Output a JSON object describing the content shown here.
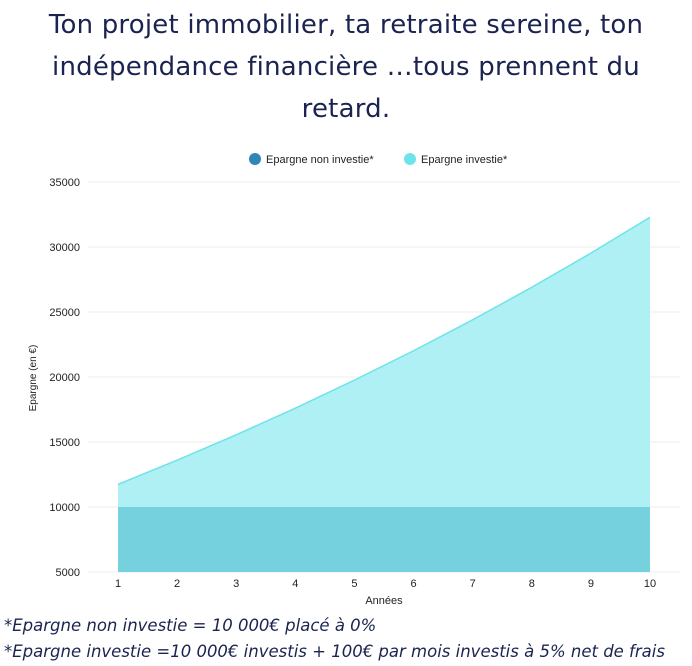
{
  "title": {
    "lines": [
      "Ton projet immobilier, ta retraite sereine, ton",
      "indépendance financière …tous prennent du",
      "retard."
    ]
  },
  "footnotes": [
    "*Epargne non investie = 10 000€ placé à 0%",
    "*Epargne investie =10 000€ investis + 100€ par mois investis à 5% net de frais"
  ],
  "colors": {
    "non_invested": "#2f86b6",
    "invested": "#6ee3ea",
    "invested_fill": "#aef0f3",
    "overlap_fill": "#76d1de",
    "title_text": "#1b2450"
  },
  "chart_data": {
    "type": "area",
    "xlabel": "Années",
    "ylabel": "Epargne (en €)",
    "x": [
      1,
      2,
      3,
      4,
      5,
      6,
      7,
      8,
      9,
      10
    ],
    "ylim": [
      5000,
      35000
    ],
    "yticks": [
      5000,
      10000,
      15000,
      20000,
      25000,
      30000,
      35000
    ],
    "grid": true,
    "legend_position": "top-center",
    "series": [
      {
        "name": "Epargne non investie*",
        "values": [
          10000,
          10000,
          10000,
          10000,
          10000,
          10000,
          10000,
          10000,
          10000,
          10000
        ]
      },
      {
        "name": "Epargne investie*",
        "values": [
          11740,
          13600,
          15550,
          17600,
          19760,
          22020,
          24400,
          26900,
          29530,
          32290
        ]
      }
    ]
  }
}
